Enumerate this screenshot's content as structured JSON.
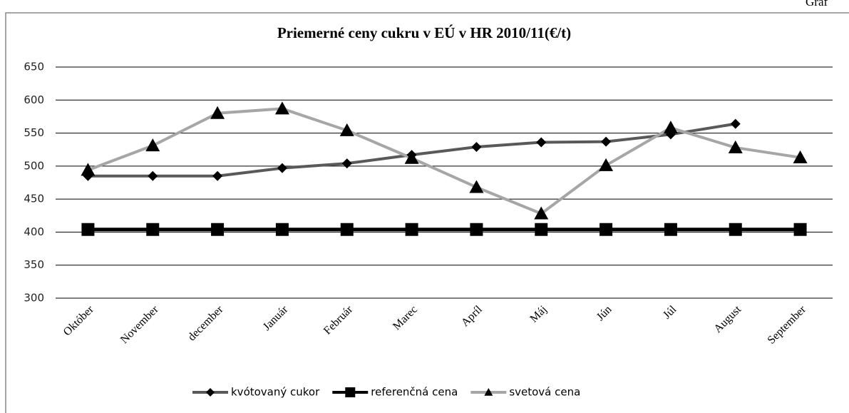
{
  "chart_data": {
    "type": "line",
    "title": "Priemerné ceny cukru v EÚ v HR 2010/11(€/t)",
    "corner_note": "Graf",
    "categories": [
      "Október",
      "November",
      "december",
      "Január",
      "Február",
      "Marec",
      "Apríl",
      "Máj",
      "Jún",
      "Júl",
      "August",
      "September"
    ],
    "series": [
      {
        "name": "kvótovaný cukor",
        "color": "#595959",
        "marker": "diamond",
        "values": [
          485,
          485,
          485,
          497,
          504,
          517,
          529,
          536,
          537,
          548,
          564,
          null
        ]
      },
      {
        "name": "referenčná cena",
        "color": "#000000",
        "marker": "square",
        "values": [
          404,
          404,
          404,
          404,
          404,
          404,
          404,
          404,
          404,
          404,
          404,
          404
        ]
      },
      {
        "name": "svetová cena",
        "color": "#a6a6a6",
        "marker": "triangle",
        "values": [
          494,
          531,
          580,
          587,
          554,
          512,
          468,
          428,
          501,
          558,
          528,
          513
        ]
      }
    ],
    "ylim": [
      300,
      650
    ],
    "yticks": [
      300,
      350,
      400,
      450,
      500,
      550,
      600,
      650
    ],
    "grid": true,
    "legend": "bottom"
  }
}
